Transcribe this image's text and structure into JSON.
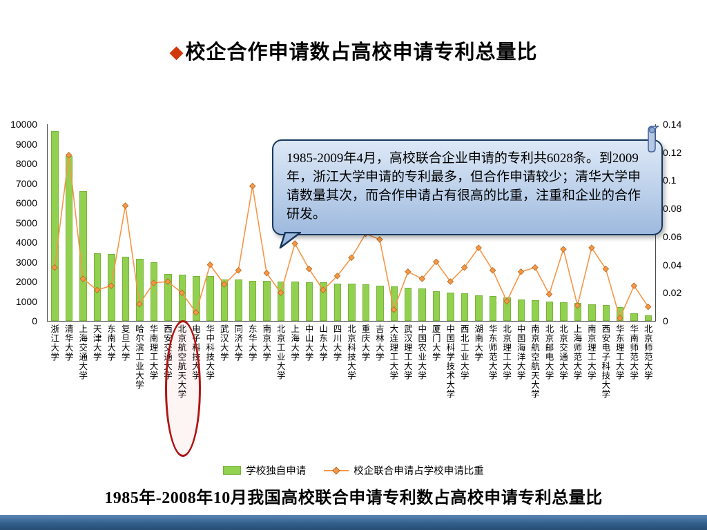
{
  "slide": {
    "title_bullet": "◆",
    "title": "校企合作申请数占高校申请专利总量比",
    "caption": "1985年-2008年10月我国高校联合申请专利数占高校申请专利总量比"
  },
  "callout": {
    "text": "1985-2009年4月，高校联合企业申请的专利共6028条。到2009年，浙江大学申请的专利最多，但合作申请较少；清华大学申请数量其次，而合作申请占有很高的比重，注重和企业的合作研发。"
  },
  "legend": {
    "bar_label": "学校独自申请",
    "line_label": "校企联合申请占学校申请比重"
  },
  "colors": {
    "bar": "#92D050",
    "line": "#F79646",
    "line_marker_stroke": "#b06a1e",
    "ellipse": "#B01513",
    "callout_border": "#17375E",
    "callout_fill_top": "#dde8f6",
    "callout_fill_bottom": "#9db9de",
    "bottom_bar": "#33608c",
    "title_bullet": "#D0390B"
  },
  "chart_data": {
    "type": "bar",
    "subtype": "combo-bar-line-dual-axis",
    "title": "",
    "xlabel": "",
    "ylabel_left": "",
    "ylabel_right": "",
    "grid": false,
    "legend_position": "bottom",
    "categories": [
      "浙江大学",
      "清华大学",
      "上海交通大学",
      "天津大学",
      "东南大学",
      "复旦大学",
      "哈尔滨工业大学",
      "华南理工大学",
      "西安交通大学",
      "北京航空航天大学",
      "电子科技大学",
      "华中科技大学",
      "武汉大学",
      "同济大学",
      "东华大学",
      "南京大学",
      "北京工业大学",
      "上海大学",
      "中山大学",
      "山东大学",
      "四川大学",
      "北京科技大学",
      "重庆大学",
      "吉林大学",
      "大连理工大学",
      "武汉理工大学",
      "中国农业大学",
      "厦门大学",
      "中国科学技术大学",
      "西北工业大学",
      "湖南大学",
      "华东师范大学",
      "北京理工大学",
      "中国海洋大学",
      "南京航空航天大学",
      "北京邮电大学",
      "北京交通大学",
      "上海师范大学",
      "南京理工大学",
      "西安电子科技大学",
      "华东理工大学",
      "华南师范大学",
      "北京师范大学"
    ],
    "series": [
      {
        "name": "学校独自申请",
        "type": "bar",
        "axis": "left",
        "values": [
          9650,
          8400,
          6600,
          3450,
          3400,
          3250,
          3150,
          3000,
          2400,
          2350,
          2300,
          2300,
          2100,
          2100,
          2050,
          2050,
          2000,
          2000,
          1950,
          1950,
          1900,
          1900,
          1850,
          1800,
          1750,
          1700,
          1650,
          1500,
          1450,
          1400,
          1300,
          1250,
          1200,
          1100,
          1050,
          1000,
          950,
          900,
          850,
          800,
          700,
          400,
          300
        ]
      },
      {
        "name": "校企联合申请占学校申请比重",
        "type": "line",
        "axis": "right",
        "values": [
          0.038,
          0.118,
          0.03,
          0.022,
          0.025,
          0.082,
          0.012,
          0.027,
          0.028,
          0.02,
          0.006,
          0.04,
          0.026,
          0.036,
          0.096,
          0.034,
          0.02,
          0.055,
          0.037,
          0.022,
          0.032,
          0.045,
          0.062,
          0.058,
          0.008,
          0.035,
          0.03,
          0.042,
          0.028,
          0.038,
          0.052,
          0.036,
          0.014,
          0.035,
          0.038,
          0.019,
          0.051,
          0.011,
          0.052,
          0.037,
          0.002,
          0.025,
          0.01
        ]
      }
    ],
    "left_axis": {
      "min": 0,
      "max": 10000,
      "step": 1000,
      "ticks": [
        0,
        1000,
        2000,
        3000,
        4000,
        5000,
        6000,
        7000,
        8000,
        9000,
        10000
      ]
    },
    "right_axis": {
      "min": 0,
      "max": 0.14,
      "ticks": [
        "0",
        "0.02",
        "0.04",
        "0.06",
        "0.08",
        "0.1",
        "0.12",
        "0.14"
      ]
    },
    "annotation": {
      "circled_category_index": 9,
      "circled_category": "北京航空航天大学"
    }
  }
}
